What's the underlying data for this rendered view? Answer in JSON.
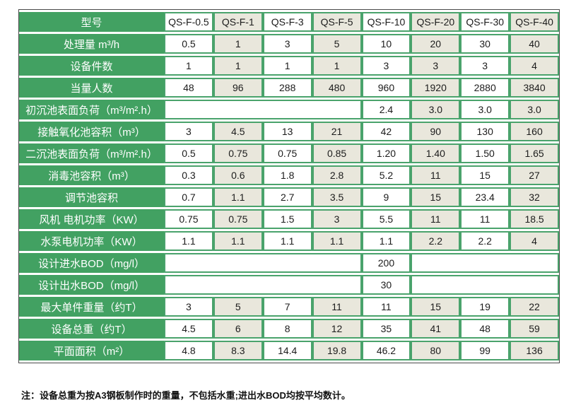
{
  "colors": {
    "label_green": "#42a162",
    "border_green": "#4aa36c",
    "cell_beige": "#e9e7dc",
    "cell_white": "#ffffff",
    "outer_border": "#4a4a4a",
    "text_dark": "#1c1c1c",
    "label_text": "#ffffff"
  },
  "table": {
    "header_label": "型号",
    "columns": [
      "QS-F-0.5",
      "QS-F-1",
      "QS-F-3",
      "QS-F-5",
      "QS-F-10",
      "QS-F-20",
      "QS-F-30",
      "QS-F-40"
    ],
    "rows": [
      {
        "label": "处理量 m³/h",
        "merge": "none",
        "values": [
          "0.5",
          "1",
          "3",
          "5",
          "10",
          "20",
          "30",
          "40"
        ]
      },
      {
        "label": "设备件数",
        "merge": "none",
        "values": [
          "1",
          "1",
          "1",
          "1",
          "3",
          "3",
          "3",
          "4"
        ]
      },
      {
        "label": "当量人数",
        "merge": "none",
        "values": [
          "48",
          "96",
          "288",
          "480",
          "960",
          "1920",
          "2880",
          "3840"
        ]
      },
      {
        "label": "初沉池表面负荷（m³/m².h）",
        "merge": "left4",
        "values": [
          "",
          "",
          "",
          "",
          "2.4",
          "3.0",
          "3.0",
          "3.0"
        ]
      },
      {
        "label": "接触氧化池容积（m³）",
        "merge": "none",
        "values": [
          "3",
          "4.5",
          "13",
          "21",
          "42",
          "90",
          "130",
          "160"
        ]
      },
      {
        "label": "二沉池表面负荷（m³/m².h）",
        "merge": "none",
        "values": [
          "0.5",
          "0.75",
          "0.75",
          "0.85",
          "1.20",
          "1.40",
          "1.50",
          "1.65"
        ]
      },
      {
        "label": "消毒池容积（m³）",
        "merge": "none",
        "values": [
          "0.3",
          "0.6",
          "1.8",
          "2.8",
          "5.2",
          "11",
          "15",
          "27"
        ]
      },
      {
        "label": "调节池容积",
        "merge": "none",
        "values": [
          "0.7",
          "1.1",
          "2.7",
          "3.5",
          "9",
          "15",
          "23.4",
          "32"
        ]
      },
      {
        "label": "风机 电机功率（KW）",
        "merge": "none",
        "values": [
          "0.75",
          "0.75",
          "1.5",
          "3",
          "5.5",
          "11",
          "11",
          "18.5"
        ]
      },
      {
        "label": "水泵电机功率（KW）",
        "merge": "none",
        "values": [
          "1.1",
          "1.1",
          "1.1",
          "1.1",
          "1.1",
          "2.2",
          "2.2",
          "4"
        ]
      },
      {
        "label": "设计进水BOD（mg/l）",
        "merge": "left4-right3",
        "values": [
          "",
          "",
          "",
          "",
          "200",
          "",
          "",
          ""
        ]
      },
      {
        "label": "设计出水BOD（mg/l）",
        "merge": "left4-right3",
        "values": [
          "",
          "",
          "",
          "",
          "30",
          "",
          "",
          ""
        ]
      },
      {
        "label": "最大单件重量（约T）",
        "merge": "none",
        "values": [
          "3",
          "5",
          "7",
          "11",
          "11",
          "15",
          "19",
          "22"
        ]
      },
      {
        "label": "设备总重（约T）",
        "merge": "none",
        "values": [
          "4.5",
          "6",
          "8",
          "12",
          "35",
          "41",
          "48",
          "59"
        ]
      },
      {
        "label": "平面面积（m²）",
        "merge": "none",
        "values": [
          "4.8",
          "8.3",
          "14.4",
          "19.8",
          "46.2",
          "80",
          "99",
          "136"
        ]
      }
    ]
  },
  "note": "注：设备总重为按A3钢板制作时的重量，不包括水重;进出水BOD均按平均数计。"
}
